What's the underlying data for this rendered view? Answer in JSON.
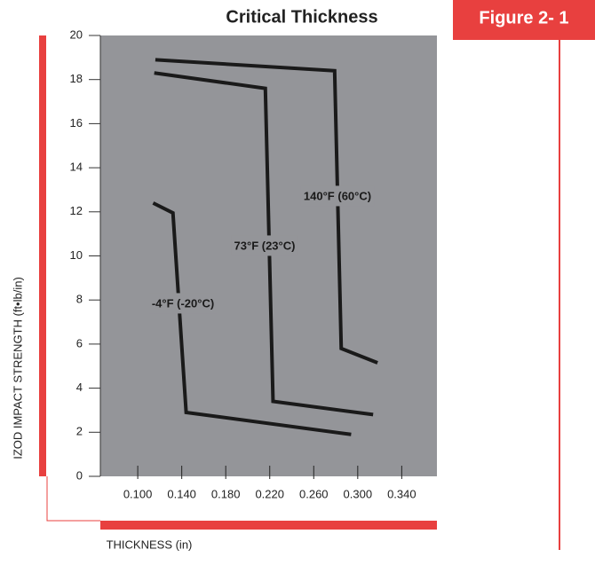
{
  "chart_data": {
    "type": "line",
    "title": "Critical Thickness",
    "figure_label": "Figure 2- 1",
    "x_label": "THICKNESS (in)",
    "y_label": "IZOD IMPACT STRENGTH (ft•lb/in)",
    "xlim": [
      0.066,
      0.372
    ],
    "ylim": [
      0,
      20
    ],
    "xticks": [
      {
        "value": 0.1,
        "label": "0.100"
      },
      {
        "value": 0.14,
        "label": "0.140"
      },
      {
        "value": 0.18,
        "label": "0.180"
      },
      {
        "value": 0.22,
        "label": "0.220"
      },
      {
        "value": 0.26,
        "label": "0.260"
      },
      {
        "value": 0.3,
        "label": "0.300"
      },
      {
        "value": 0.34,
        "label": "0.340"
      }
    ],
    "yticks": [
      0,
      2,
      4,
      6,
      8,
      10,
      12,
      14,
      16,
      18,
      20
    ],
    "series": [
      {
        "name": "140°F (60°C)",
        "color": "#1a1a1a",
        "x": [
          0.116,
          0.279,
          0.285,
          0.318
        ],
        "values": [
          18.9,
          18.4,
          5.8,
          5.15
        ]
      },
      {
        "name": "73°F (23°C)",
        "color": "#1a1a1a",
        "x": [
          0.115,
          0.216,
          0.223,
          0.314
        ],
        "values": [
          18.3,
          17.6,
          3.4,
          2.8
        ]
      },
      {
        "name": "-4°F (-20°C)",
        "color": "#1a1a1a",
        "x": [
          0.114,
          0.132,
          0.144,
          0.294
        ],
        "values": [
          12.4,
          11.95,
          2.9,
          1.9
        ]
      }
    ]
  }
}
